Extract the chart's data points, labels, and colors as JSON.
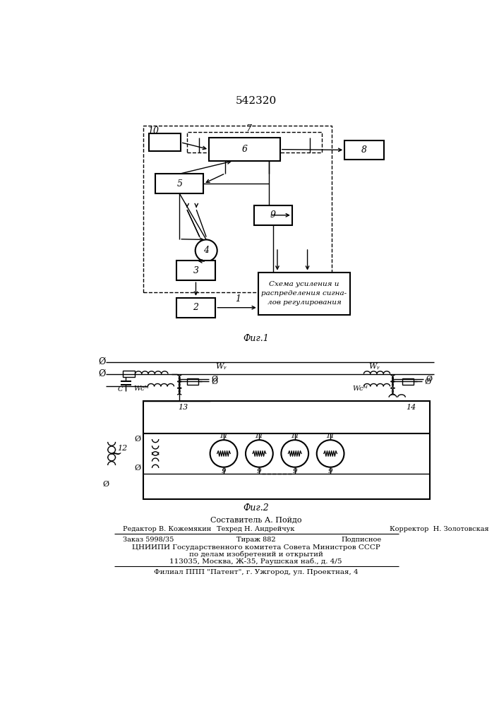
{
  "title": "542320",
  "fig1_label": "Фиг.1",
  "fig2_label": "Фиг.2",
  "bg_color": "#ffffff",
  "line_color": "#000000",
  "text_color": "#000000",
  "footnote_line1": "Составитель А. Пойдо",
  "footnote_line2_left": "Редактор В. Кожемякин",
  "footnote_line2_mid": "Техред Н. Андрейчук",
  "footnote_line2_right": "Корректор  Н. Золотовская",
  "footnote_line3_left": "Заказ 5998/35",
  "footnote_line3_mid": "Тираж 882",
  "footnote_line3_right": "Подписное",
  "footnote_line4": "ЦНИИПИ Государственного комитета Совета Министров СССР",
  "footnote_line5": "по делам изобретений и открытий",
  "footnote_line6": "113035, Москва, Ж-35, Раушская наб., д. 4/5",
  "footnote_line7": "Филиал ППП \"Патент\", г. Ужгород, ул. Проектная, 4"
}
